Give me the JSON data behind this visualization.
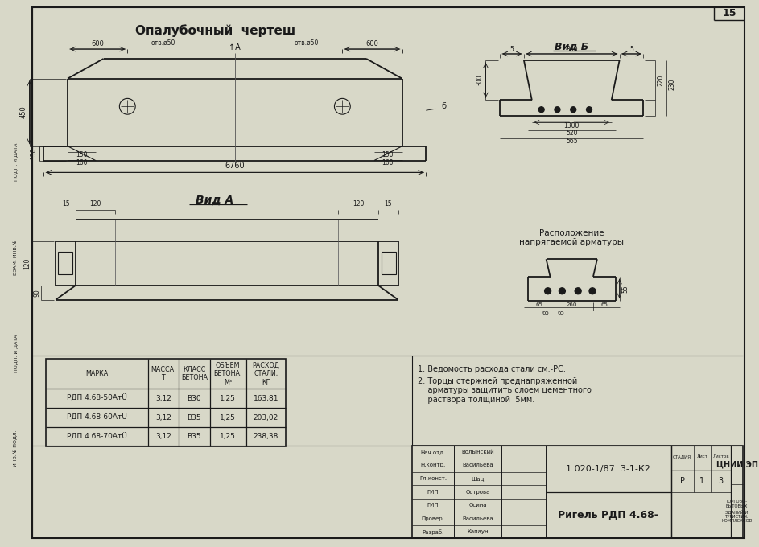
{
  "bg_color": "#d8d8c8",
  "paper_color": "#e8e8d8",
  "line_color": "#1a1a1a",
  "title_main": "Опалубочный  чертеш",
  "view_a_label": "Вид А",
  "view_b_label": "Вид Б",
  "notes_label": "Расположение\nнапрягаемой арматуры",
  "note1": "1. Ведомость расхода стали см.-РС.",
  "note2": "2. Торцы стержней преднапряженной\n    арматуры защитить слоем цементного\n    раствора толщиной  5мм.",
  "doc_number": "1.020-1/87. 3-1-К2",
  "title_beam": "Ригель РДП 4.68-",
  "table_headers": [
    "МАРКА",
    "МАССА,\nТ",
    "КЛАСС\nБЕТОНА",
    "ОБЪЕМ\nБЕТОНА,\nМ³",
    "РАСХОД\nСТАЛИ,\nКГ"
  ],
  "table_rows": [
    [
      "РДП 4.68-50АтÜ",
      "3,12",
      "В30",
      "1,25",
      "163,81"
    ],
    [
      "РДП 4.68-60АтÜ",
      "3,12",
      "В35",
      "1,25",
      "203,02"
    ],
    [
      "РДП 4.68-70АтÜ",
      "3,12",
      "В35",
      "1,25",
      "238,38"
    ]
  ],
  "stamp_rows": [
    [
      "Нач.отд.",
      "Волынский"
    ],
    [
      "Н.контр.",
      "Васильева"
    ],
    [
      "Гл.конст.",
      "Шац"
    ],
    [
      "ГИП",
      "Острова"
    ],
    [
      "ГИП",
      "Осина"
    ],
    [
      "Провер.",
      "Васильева"
    ],
    [
      "Разраб.",
      "Капаун"
    ]
  ],
  "page_num": "15",
  "left_strip_labels": [
    "ИНВ.№ ПОДЛ.",
    "ПОДП. И ДАТА",
    "ВЗАМ. ИНВ.№",
    "ПОДП. И ДАТА"
  ]
}
